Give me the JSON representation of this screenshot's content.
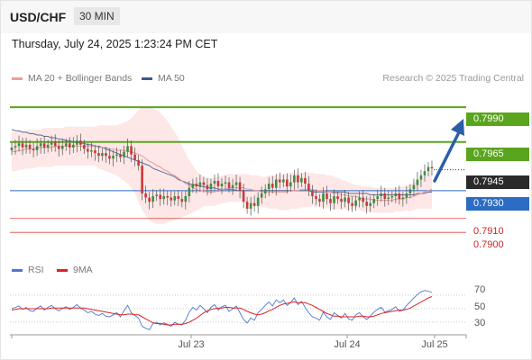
{
  "header": {
    "symbol": "USD/CHF",
    "timeframe": "30 MIN",
    "datetime": "Thursday, July 24, 2025 1:23:24 PM CET"
  },
  "legend": {
    "bollinger_label": "MA 20 + Bollinger Bands",
    "ma50_label": "MA 50",
    "credit": "Research © 2025 Trading Central",
    "rsi_label": "RSI",
    "rsi_ma_label": "9MA"
  },
  "colors": {
    "green_level": "#5aa51e",
    "blue_level": "#2b6cc4",
    "red_level": "#e04040",
    "current_price_bg": "#2a2a2a",
    "bollinger_fill": "#fde3e3",
    "ma20": "#e89c9c",
    "ma50": "#5a6f9a",
    "arrow": "#2b5ea8",
    "candle_up": "#3e8e3e",
    "candle_down": "#c93a3a",
    "rsi": "#4a78d0",
    "rsi_ma": "#dd2222"
  },
  "chart_data": [
    {
      "type": "candlestick",
      "title": "USD/CHF",
      "timeframe": "30 MIN",
      "x_tick_labels": [
        "Jul 23",
        "Jul 24",
        "Jul 25"
      ],
      "ylim": [
        0.7882,
        0.8003
      ],
      "levels": {
        "resistance": [
          0.799,
          0.7965
        ],
        "pivot": 0.793,
        "support": [
          0.791,
          0.79
        ],
        "current_price": 0.7945
      },
      "level_labels": [
        "0.7990",
        "0.7965",
        "0.7945",
        "0.7930",
        "0.7910",
        "0.7900"
      ],
      "closes": [
        0.7961,
        0.7962,
        0.7964,
        0.7961,
        0.7963,
        0.796,
        0.7959,
        0.7962,
        0.7964,
        0.7961,
        0.7963,
        0.7965,
        0.7962,
        0.796,
        0.7962,
        0.7964,
        0.7961,
        0.7963,
        0.7966,
        0.7963,
        0.796,
        0.7958,
        0.7959,
        0.7957,
        0.7955,
        0.7957,
        0.7955,
        0.7953,
        0.7955,
        0.7956,
        0.7954,
        0.7958,
        0.7962,
        0.7956,
        0.7952,
        0.7948,
        0.7928,
        0.7925,
        0.7922,
        0.7926,
        0.7927,
        0.7924,
        0.7926,
        0.7925,
        0.7923,
        0.7926,
        0.7924,
        0.7922,
        0.7926,
        0.7932,
        0.7935,
        0.7933,
        0.7936,
        0.7934,
        0.7931,
        0.7935,
        0.7937,
        0.7933,
        0.7935,
        0.7936,
        0.7932,
        0.7934,
        0.7936,
        0.793,
        0.7922,
        0.7917,
        0.7921,
        0.7919,
        0.7925,
        0.7928,
        0.7931,
        0.7935,
        0.7932,
        0.7938,
        0.7936,
        0.7938,
        0.7933,
        0.7936,
        0.7941,
        0.7936,
        0.7939,
        0.7935,
        0.793,
        0.7926,
        0.7924,
        0.7922,
        0.7928,
        0.7924,
        0.7921,
        0.7926,
        0.7924,
        0.7922,
        0.7925,
        0.7921,
        0.7919,
        0.7923,
        0.7925,
        0.7922,
        0.7919,
        0.7921,
        0.7924,
        0.7926,
        0.7928,
        0.7924,
        0.7925,
        0.7926,
        0.7928,
        0.7924,
        0.7925,
        0.7928,
        0.7931,
        0.7934,
        0.7938,
        0.7941,
        0.7944,
        0.7947,
        0.7946
      ],
      "ma20": [
        0.7958,
        0.7958,
        0.7959,
        0.7959,
        0.796,
        0.796,
        0.796,
        0.7961,
        0.7961,
        0.7961,
        0.7961,
        0.7961,
        0.7962,
        0.7962,
        0.7962,
        0.7962,
        0.7962,
        0.7962,
        0.7962,
        0.7962,
        0.7962,
        0.7962,
        0.7962,
        0.7962,
        0.7961,
        0.7961,
        0.7961,
        0.796,
        0.796,
        0.7959,
        0.7959,
        0.7959,
        0.7958,
        0.7958,
        0.7957,
        0.7956,
        0.7955,
        0.7953,
        0.7951,
        0.795,
        0.7948,
        0.7947,
        0.7945,
        0.7944,
        0.7942,
        0.7941,
        0.7939,
        0.7937,
        0.7935,
        0.7934,
        0.7932,
        0.7931,
        0.793,
        0.793,
        0.7929,
        0.7929,
        0.7929,
        0.793,
        0.7931,
        0.7931,
        0.7932,
        0.7932,
        0.7932,
        0.7932,
        0.7932,
        0.7931,
        0.7931,
        0.793,
        0.793,
        0.7929,
        0.7929,
        0.7929,
        0.7929,
        0.7929,
        0.7929,
        0.7929,
        0.7929,
        0.793,
        0.793,
        0.793,
        0.7931,
        0.7931,
        0.7931,
        0.7931,
        0.793,
        0.793,
        0.793,
        0.7929,
        0.7929,
        0.7928,
        0.7928,
        0.7927,
        0.7927,
        0.7926,
        0.7926,
        0.7926,
        0.7925,
        0.7924,
        0.7924,
        0.7924,
        0.7923,
        0.7923,
        0.7923,
        0.7923,
        0.7923,
        0.7923,
        0.7924,
        0.7924,
        0.7924,
        0.7925,
        0.7925,
        0.7926,
        0.7927,
        0.7928,
        0.7929,
        0.793,
        0.7931
      ],
      "ma50": [
        0.7974,
        0.7973,
        0.7973,
        0.7972,
        0.7972,
        0.7971,
        0.7971,
        0.797,
        0.797,
        0.7969,
        0.7969,
        0.7968,
        0.7968,
        0.7967,
        0.7967,
        0.7966,
        0.7966,
        0.7965,
        0.7965,
        0.7964,
        0.7964,
        0.7963,
        0.7963,
        0.7962,
        0.7962,
        0.7961,
        0.796,
        0.7959,
        0.7958,
        0.7957,
        0.7956,
        0.7955,
        0.7954,
        0.7953,
        0.7952,
        0.7951,
        0.795,
        0.7949,
        0.7948,
        0.7946,
        0.7945,
        0.7944,
        0.7943,
        0.7942,
        0.7941,
        0.794,
        0.7938,
        0.7937,
        0.7936,
        0.7935,
        0.7934,
        0.7934,
        0.7933,
        0.7933,
        0.7932,
        0.7932,
        0.7932,
        0.7931,
        0.7931,
        0.7931,
        0.7931,
        0.7931,
        0.793,
        0.793,
        0.793,
        0.793,
        0.793,
        0.793,
        0.793,
        0.793,
        0.793,
        0.793,
        0.793,
        0.793,
        0.793,
        0.793,
        0.793,
        0.793,
        0.793,
        0.793,
        0.793,
        0.793,
        0.793,
        0.7929,
        0.7929,
        0.7929,
        0.7929,
        0.7929,
        0.7929,
        0.7929,
        0.7929,
        0.7929,
        0.7929,
        0.7928,
        0.7928,
        0.7928,
        0.7928,
        0.7928,
        0.7928,
        0.7927,
        0.7927,
        0.7927,
        0.7927,
        0.7927,
        0.7927,
        0.7927,
        0.7927,
        0.7927,
        0.7927,
        0.7927,
        0.7927,
        0.7927,
        0.7928,
        0.7928,
        0.7928,
        0.7929,
        0.7929
      ],
      "bb_upper": [
        0.7972,
        0.7972,
        0.7973,
        0.7973,
        0.7973,
        0.7974,
        0.7974,
        0.7974,
        0.7974,
        0.7975,
        0.7975,
        0.7975,
        0.7975,
        0.7975,
        0.7975,
        0.7976,
        0.7976,
        0.7976,
        0.7976,
        0.7976,
        0.7976,
        0.7976,
        0.7976,
        0.7976,
        0.7977,
        0.7977,
        0.7977,
        0.7977,
        0.7977,
        0.7977,
        0.7978,
        0.7979,
        0.798,
        0.7982,
        0.7985,
        0.7988,
        0.799,
        0.799,
        0.799,
        0.7989,
        0.7988,
        0.7986,
        0.7983,
        0.798,
        0.7976,
        0.7972,
        0.7968,
        0.7962,
        0.7957,
        0.7952,
        0.7948,
        0.7944,
        0.7942,
        0.794,
        0.7939,
        0.7939,
        0.7939,
        0.794,
        0.7941,
        0.7941,
        0.7942,
        0.7942,
        0.7942,
        0.7942,
        0.7942,
        0.7942,
        0.7941,
        0.7941,
        0.7941,
        0.794,
        0.794,
        0.7941,
        0.7941,
        0.7941,
        0.7942,
        0.7942,
        0.7942,
        0.7943,
        0.7943,
        0.7943,
        0.7943,
        0.7943,
        0.7943,
        0.7943,
        0.7942,
        0.7942,
        0.7942,
        0.7941,
        0.7941,
        0.794,
        0.7939,
        0.7938,
        0.7937,
        0.7936,
        0.7935,
        0.7934,
        0.7934,
        0.7933,
        0.7933,
        0.7933,
        0.7932,
        0.7932,
        0.7932,
        0.7932,
        0.7932,
        0.7932,
        0.7932,
        0.7933,
        0.7933,
        0.7934,
        0.7935,
        0.7936,
        0.7937,
        0.7939,
        0.7941,
        0.7943,
        0.7945
      ],
      "bb_lower": [
        0.7944,
        0.7944,
        0.7945,
        0.7945,
        0.7946,
        0.7946,
        0.7946,
        0.7947,
        0.7947,
        0.7947,
        0.7947,
        0.7947,
        0.7948,
        0.7948,
        0.7948,
        0.7948,
        0.7948,
        0.7948,
        0.7948,
        0.7948,
        0.7948,
        0.7948,
        0.7948,
        0.7948,
        0.7946,
        0.7945,
        0.7944,
        0.7943,
        0.7942,
        0.7941,
        0.7939,
        0.7937,
        0.7935,
        0.7932,
        0.7928,
        0.7922,
        0.7916,
        0.7912,
        0.7909,
        0.7907,
        0.7906,
        0.7906,
        0.7906,
        0.7907,
        0.7908,
        0.7909,
        0.791,
        0.7911,
        0.7912,
        0.7913,
        0.7914,
        0.7916,
        0.7917,
        0.7919,
        0.7919,
        0.7919,
        0.7919,
        0.792,
        0.7921,
        0.7921,
        0.7922,
        0.7922,
        0.7922,
        0.7922,
        0.7922,
        0.792,
        0.792,
        0.7919,
        0.7919,
        0.7918,
        0.7918,
        0.7917,
        0.7917,
        0.7917,
        0.7916,
        0.7916,
        0.7916,
        0.7917,
        0.7917,
        0.7917,
        0.7918,
        0.7918,
        0.7918,
        0.7919,
        0.7918,
        0.7918,
        0.7918,
        0.7917,
        0.7917,
        0.7916,
        0.7917,
        0.7916,
        0.7917,
        0.7916,
        0.7917,
        0.7918,
        0.7916,
        0.7915,
        0.7915,
        0.7915,
        0.7914,
        0.7914,
        0.7914,
        0.7914,
        0.7914,
        0.7914,
        0.7915,
        0.7915,
        0.7915,
        0.7916,
        0.7915,
        0.7916,
        0.7917,
        0.7917,
        0.7917,
        0.7917,
        0.7917
      ]
    },
    {
      "type": "line",
      "title": "RSI",
      "series_labels": [
        "RSI",
        "9MA"
      ],
      "y_tick_labels": [
        "70",
        "50",
        "30"
      ],
      "ylim": [
        10,
        90
      ],
      "rsi": [
        50,
        52,
        54,
        49,
        52,
        47,
        46,
        51,
        54,
        48,
        52,
        55,
        50,
        47,
        50,
        53,
        49,
        52,
        56,
        51,
        48,
        44,
        46,
        42,
        40,
        43,
        39,
        38,
        41,
        44,
        38,
        47,
        55,
        44,
        40,
        36,
        24,
        21,
        19,
        28,
        30,
        26,
        29,
        27,
        24,
        30,
        27,
        26,
        33,
        45,
        52,
        48,
        55,
        50,
        44,
        52,
        56,
        48,
        53,
        55,
        46,
        50,
        54,
        44,
        34,
        29,
        36,
        33,
        44,
        49,
        55,
        60,
        54,
        63,
        59,
        63,
        55,
        59,
        66,
        56,
        61,
        52,
        44,
        38,
        36,
        33,
        45,
        38,
        34,
        44,
        40,
        36,
        43,
        35,
        33,
        41,
        44,
        38,
        34,
        39,
        45,
        49,
        52,
        45,
        47,
        49,
        53,
        46,
        48,
        55,
        60,
        66,
        71,
        75,
        77,
        76,
        74
      ],
      "rsi_ma": [
        48,
        49,
        50,
        50,
        50,
        50,
        50,
        50,
        50,
        50,
        50,
        51,
        51,
        51,
        51,
        51,
        51,
        51,
        51,
        51,
        51,
        50,
        49,
        48,
        47,
        46,
        45,
        44,
        43,
        42,
        41,
        41,
        42,
        42,
        41,
        41,
        38,
        35,
        32,
        29,
        28,
        28,
        27,
        26,
        26,
        27,
        27,
        27,
        28,
        30,
        33,
        36,
        40,
        44,
        47,
        49,
        50,
        51,
        51,
        52,
        52,
        51,
        51,
        51,
        49,
        46,
        44,
        42,
        41,
        42,
        44,
        47,
        49,
        52,
        55,
        57,
        58,
        59,
        60,
        59,
        59,
        59,
        57,
        55,
        52,
        49,
        46,
        43,
        41,
        39,
        39,
        38,
        38,
        38,
        38,
        38,
        39,
        39,
        38,
        38,
        39,
        41,
        43,
        44,
        45,
        46,
        47,
        48,
        48,
        49,
        51,
        54,
        57,
        60,
        63,
        66,
        68
      ]
    }
  ]
}
